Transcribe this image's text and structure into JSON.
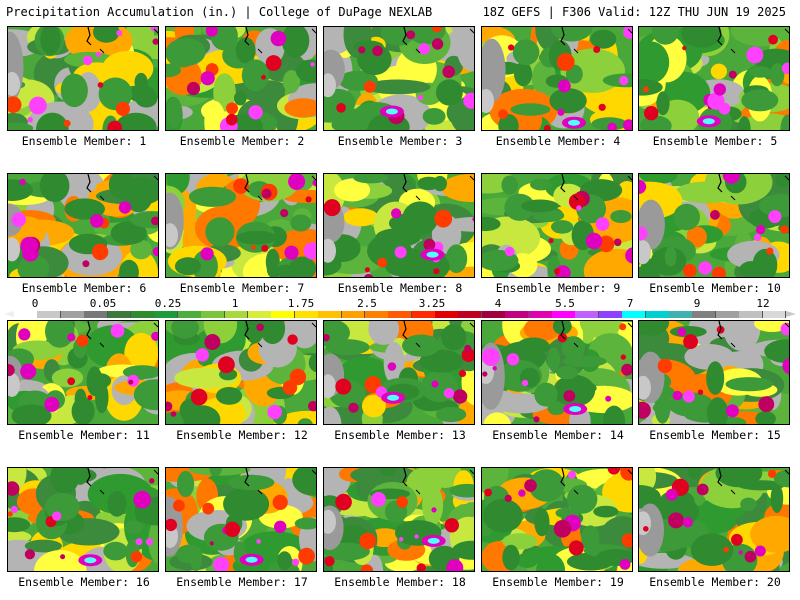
{
  "header": {
    "left_title": "Precipitation Accumulation (in.) | College of DuPage NEXLAB",
    "right_title": "18Z GEFS | F306 Valid: 12Z THU JUN 19 2025"
  },
  "panels": [
    {
      "label": "Ensemble Member: 1"
    },
    {
      "label": "Ensemble Member: 2"
    },
    {
      "label": "Ensemble Member: 3"
    },
    {
      "label": "Ensemble Member: 4"
    },
    {
      "label": "Ensemble Member: 5"
    },
    {
      "label": "Ensemble Member: 6"
    },
    {
      "label": "Ensemble Member: 7"
    },
    {
      "label": "Ensemble Member: 8"
    },
    {
      "label": "Ensemble Member: 9"
    },
    {
      "label": "Ensemble Member: 10"
    },
    {
      "label": "Ensemble Member: 11"
    },
    {
      "label": "Ensemble Member: 12"
    },
    {
      "label": "Ensemble Member: 13"
    },
    {
      "label": "Ensemble Member: 14"
    },
    {
      "label": "Ensemble Member: 15"
    },
    {
      "label": "Ensemble Member: 16"
    },
    {
      "label": "Ensemble Member: 17"
    },
    {
      "label": "Ensemble Member: 18"
    },
    {
      "label": "Ensemble Member: 19"
    },
    {
      "label": "Ensemble Member: 20"
    }
  ],
  "colorbar": {
    "tick_labels": [
      "0",
      "0.05",
      "0.25",
      "1",
      "1.75",
      "2.5",
      "3.25",
      "4",
      "5.5",
      "7",
      "9",
      "12"
    ],
    "colors": [
      "#ffffff",
      "#c8c8c8",
      "#a0a0a0",
      "#787878",
      "#3c7a3c",
      "#2e8b2e",
      "#1f9a3a",
      "#4cae3c",
      "#7cc43c",
      "#a8d83c",
      "#d8ec3c",
      "#ffff00",
      "#ffe000",
      "#ffc000",
      "#ffa000",
      "#ff8000",
      "#ff5a00",
      "#ff2a00",
      "#e00000",
      "#c00020",
      "#a00040",
      "#c00080",
      "#e000b0",
      "#ff00ff",
      "#c060ff",
      "#9040ff",
      "#00ffff",
      "#00d0d0",
      "#40b0b0",
      "#808080",
      "#a0a0a0",
      "#c0c0c0",
      "#d8d8d8"
    ]
  }
}
